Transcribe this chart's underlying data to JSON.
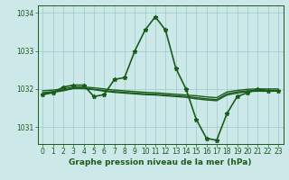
{
  "title": "Graphe pression niveau de la mer (hPa)",
  "background_color": "#cce8e8",
  "grid_color": "#99cccc",
  "line_color": "#1a5c1a",
  "xlim": [
    -0.5,
    23.5
  ],
  "ylim": [
    1030.55,
    1034.2
  ],
  "yticks": [
    1031,
    1032,
    1033,
    1034
  ],
  "xticks": [
    0,
    1,
    2,
    3,
    4,
    5,
    6,
    7,
    8,
    9,
    10,
    11,
    12,
    13,
    14,
    15,
    16,
    17,
    18,
    19,
    20,
    21,
    22,
    23
  ],
  "series": [
    {
      "x": [
        0,
        1,
        2,
        3,
        4,
        5,
        6,
        7,
        8,
        9,
        10,
        11,
        12,
        13,
        14,
        15,
        16,
        17,
        18,
        19,
        20,
        21,
        22,
        23
      ],
      "y": [
        1031.85,
        1031.9,
        1032.05,
        1032.1,
        1032.1,
        1031.8,
        1031.85,
        1032.25,
        1032.3,
        1033.0,
        1033.55,
        1033.9,
        1033.55,
        1032.55,
        1032.0,
        1031.2,
        1030.7,
        1030.65,
        1031.35,
        1031.8,
        1031.9,
        1032.0,
        1031.95,
        1031.95
      ],
      "marker": "*",
      "markersize": 3.5,
      "lw": 1.2
    },
    {
      "x": [
        0,
        1,
        2,
        3,
        4,
        5,
        6,
        7,
        8,
        9,
        10,
        11,
        12,
        13,
        14,
        15,
        16,
        17,
        18,
        19,
        20,
        21,
        22,
        23
      ],
      "y": [
        1031.95,
        1031.97,
        1032.0,
        1032.05,
        1032.05,
        1032.03,
        1032.0,
        1031.97,
        1031.95,
        1031.93,
        1031.91,
        1031.9,
        1031.88,
        1031.86,
        1031.84,
        1031.82,
        1031.79,
        1031.77,
        1031.92,
        1031.96,
        1031.99,
        1032.0,
        1032.0,
        1032.0
      ],
      "marker": null,
      "markersize": 0,
      "lw": 1.0
    },
    {
      "x": [
        0,
        1,
        2,
        3,
        4,
        5,
        6,
        7,
        8,
        9,
        10,
        11,
        12,
        13,
        14,
        15,
        16,
        17,
        18,
        19,
        20,
        21,
        22,
        23
      ],
      "y": [
        1031.9,
        1031.93,
        1031.97,
        1032.02,
        1032.02,
        1031.99,
        1031.96,
        1031.93,
        1031.91,
        1031.89,
        1031.87,
        1031.86,
        1031.84,
        1031.82,
        1031.8,
        1031.77,
        1031.74,
        1031.72,
        1031.87,
        1031.92,
        1031.95,
        1031.96,
        1031.96,
        1031.96
      ],
      "marker": null,
      "markersize": 0,
      "lw": 1.0
    },
    {
      "x": [
        0,
        1,
        2,
        3,
        4,
        5,
        6,
        7,
        8,
        9,
        10,
        11,
        12,
        13,
        14,
        15,
        16,
        17,
        18,
        19,
        20,
        21,
        22,
        23
      ],
      "y": [
        1031.87,
        1031.91,
        1031.95,
        1032.01,
        1032.01,
        1031.98,
        1031.94,
        1031.91,
        1031.89,
        1031.87,
        1031.85,
        1031.84,
        1031.82,
        1031.8,
        1031.78,
        1031.74,
        1031.71,
        1031.69,
        1031.84,
        1031.89,
        1031.93,
        1031.94,
        1031.94,
        1031.94
      ],
      "marker": null,
      "markersize": 0,
      "lw": 1.0
    }
  ],
  "tick_fontsize": 5.5,
  "xlabel_fontsize": 6.5,
  "tick_color": "#1a5c1a"
}
